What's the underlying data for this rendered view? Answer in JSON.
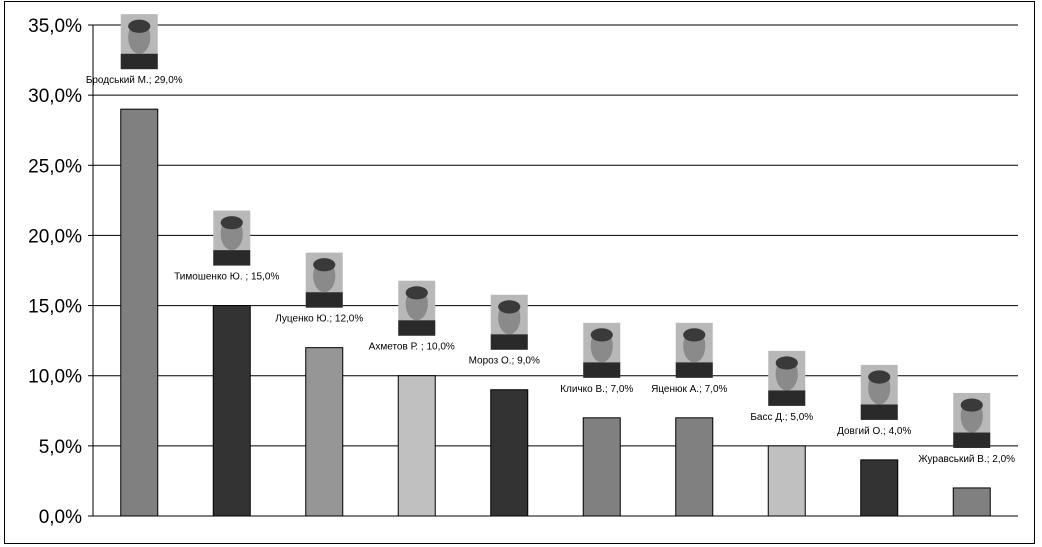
{
  "chart_data": {
    "type": "bar",
    "categories": [
      "Бродський М.",
      "Тимошенко Ю. ",
      "Луценко Ю.",
      "Ахметов Р. ",
      "Мороз О.",
      "Кличко В.",
      "Яценюк А.",
      "Басс Д.",
      "Довгий О.",
      "Журавський В."
    ],
    "values": [
      29.0,
      15.0,
      12.0,
      10.0,
      9.0,
      7.0,
      7.0,
      5.0,
      4.0,
      2.0
    ],
    "data_labels": [
      "Бродський М.; 29,0%",
      "Тимошенко Ю. ; 15,0%",
      "Луценко Ю.; 12,0%",
      "Ахметов Р. ; 10,0%",
      "Мороз О.; 9,0%",
      "Кличко В.; 7,0%",
      "Яценюк А.; 7,0%",
      "Басс Д.; 5,0%",
      "Довгий О.; 4,0%",
      "Журавський В.; 2,0%"
    ],
    "bar_colors": [
      "#808080",
      "#333333",
      "#969696",
      "#c0c0c0",
      "#333333",
      "#808080",
      "#808080",
      "#c0c0c0",
      "#333333",
      "#808080"
    ],
    "ylim": [
      0,
      35
    ],
    "yticks": [
      "0,0%",
      "5,0%",
      "10,0%",
      "15,0%",
      "20,0%",
      "25,0%",
      "30,0%",
      "35,0%"
    ],
    "grid": true,
    "legend": "none",
    "title": "",
    "xlabel": "",
    "ylabel": ""
  }
}
